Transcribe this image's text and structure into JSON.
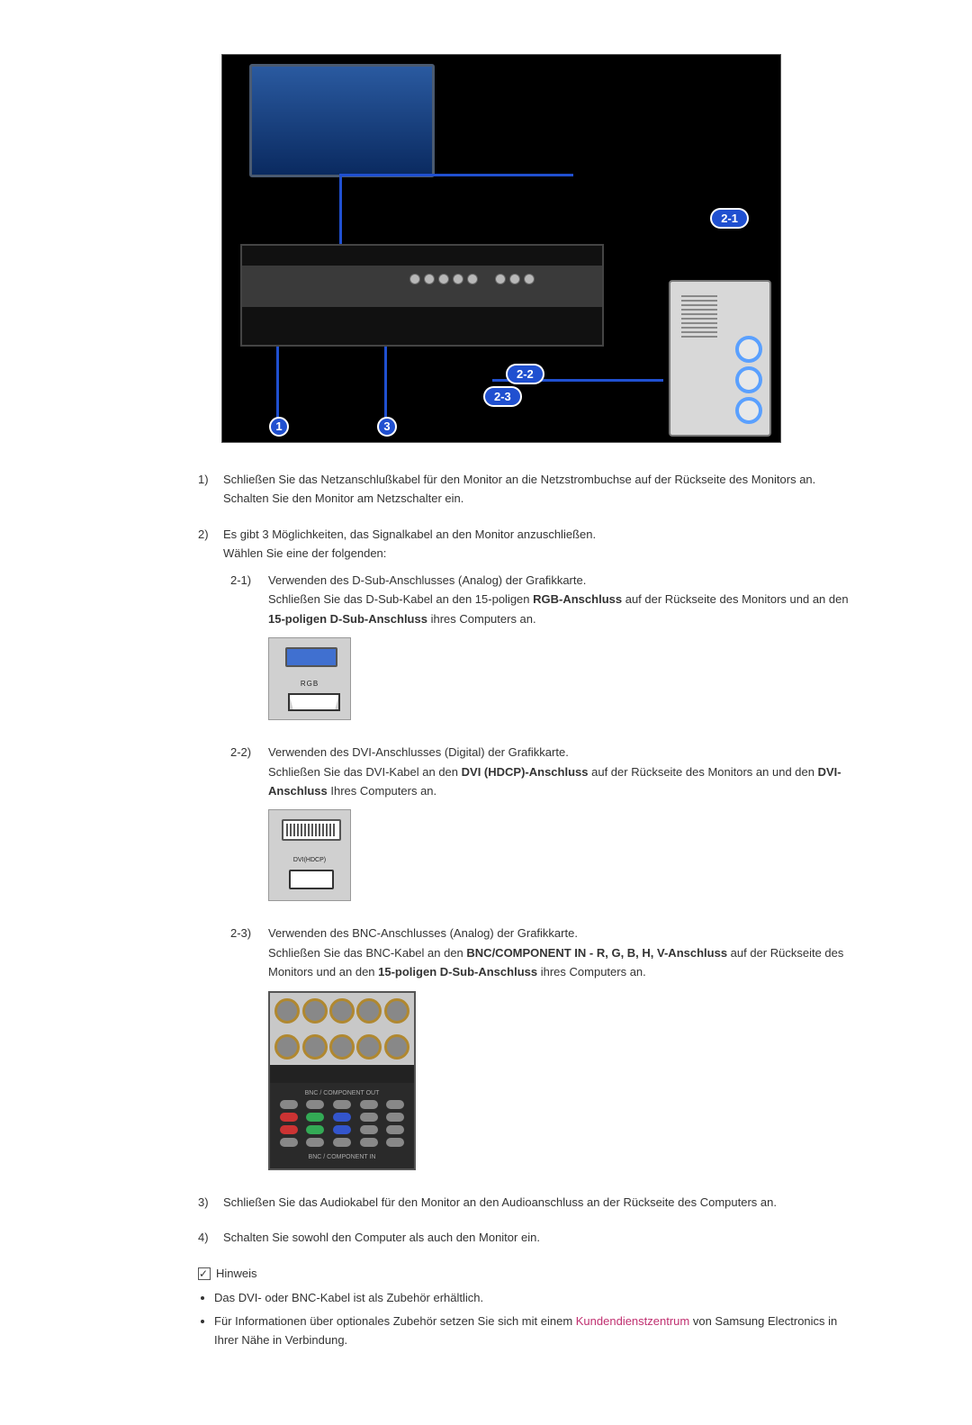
{
  "diagram": {
    "callout_2_1": "2-1",
    "callout_2_2": "2-2",
    "callout_2_3": "2-3",
    "callout_1": "1",
    "callout_3": "3",
    "colors": {
      "callout_bg": "#2050d0",
      "callout_border": "#ffffff",
      "panel_bg": "#000000"
    }
  },
  "steps": {
    "s1": {
      "num": "1)",
      "text_a": "Schließen Sie das Netzanschlußkabel für den Monitor an die Netzstrombuchse auf der Rückseite des Monitors an.",
      "text_b": "Schalten Sie den Monitor am Netzschalter ein."
    },
    "s2": {
      "num": "2)",
      "intro_a": "Es gibt 3 Möglichkeiten, das Signalkabel an den Monitor anzuschließen.",
      "intro_b": "Wählen Sie eine der folgenden:",
      "sub1": {
        "num": "2-1)",
        "line1": "Verwenden des D-Sub-Anschlusses (Analog) der Grafikkarte.",
        "line2_a": "Schließen Sie das D-Sub-Kabel an den 15-poligen ",
        "line2_bold": "RGB-Anschluss",
        "line2_b": " auf der Rückseite des Monitors und an den ",
        "line2_bold2": "15-poligen D-Sub-Anschluss",
        "line2_c": " ihres Computers an.",
        "illus_label": "RGB"
      },
      "sub2": {
        "num": "2-2)",
        "line1": "Verwenden des DVI-Anschlusses (Digital) der Grafikkarte.",
        "line2_a": "Schließen Sie das DVI-Kabel an den ",
        "line2_bold": "DVI (HDCP)-Anschluss",
        "line2_b": " auf der Rückseite des Monitors an und den ",
        "line2_bold2": "DVI-Anschluss",
        "line2_c": " Ihres Computers an.",
        "illus_label": "DVI(HDCP)"
      },
      "sub3": {
        "num": "2-3)",
        "line1": "Verwenden des BNC-Anschlusses (Analog) der Grafikkarte.",
        "line2_a": "Schließen Sie das BNC-Kabel an den ",
        "line2_bold": "BNC/COMPONENT IN - R, G, B, H, V-Anschluss",
        "line2_b": " auf der Rückseite des Monitors und an den ",
        "line2_bold2": "15-poligen D-Sub-Anschluss",
        "line2_c": " ihres Computers an.",
        "panel_label_out": "BNC / COMPONENT OUT",
        "panel_label_in": "BNC / COMPONENT IN",
        "pill_colors_row1": [
          "#888888",
          "#888888",
          "#888888",
          "#888888",
          "#888888"
        ],
        "pill_colors_row2": [
          "#cc3333",
          "#33aa55",
          "#3355cc",
          "#888888",
          "#888888"
        ],
        "pill_colors_row3": [
          "#cc3333",
          "#33aa55",
          "#3355cc",
          "#888888",
          "#888888"
        ],
        "pill_colors_row4": [
          "#888888",
          "#888888",
          "#888888",
          "#888888",
          "#888888"
        ]
      }
    },
    "s3": {
      "num": "3)",
      "text": "Schließen Sie das Audiokabel für den Monitor an den Audioanschluss an der Rückseite des Computers an."
    },
    "s4": {
      "num": "4)",
      "text": "Schalten Sie sowohl den Computer als auch den Monitor ein."
    }
  },
  "hint": {
    "label": "Hinweis",
    "bullet1": "Das DVI- oder BNC-Kabel ist als Zubehör erhältlich.",
    "bullet2_a": "Für Informationen über optionales Zubehör setzen Sie sich mit einem ",
    "bullet2_link": "Kundendienstzentrum",
    "bullet2_b": " von Samsung Electronics in Ihrer Nähe in Verbindung."
  }
}
